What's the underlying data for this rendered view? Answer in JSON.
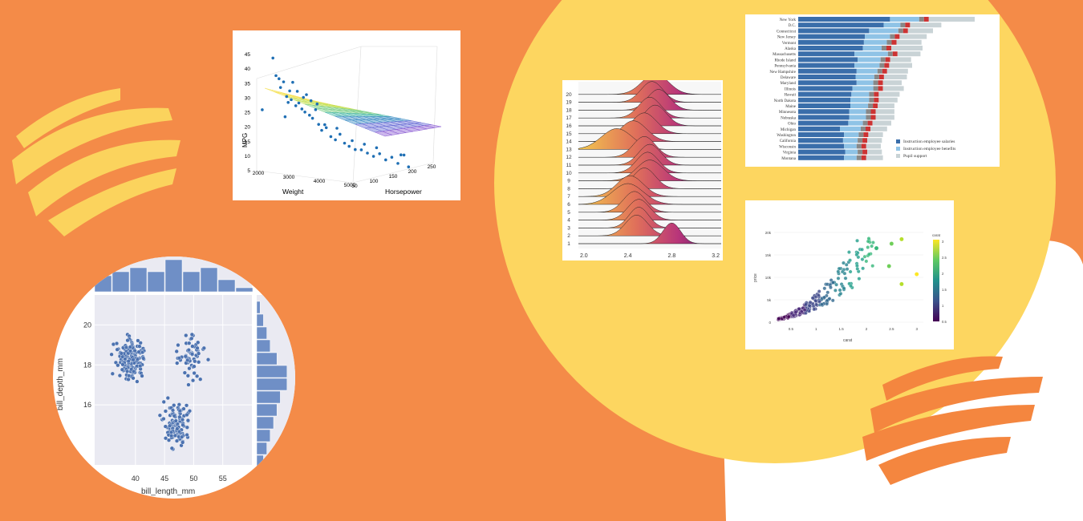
{
  "colors": {
    "background": "#f48b48",
    "yellow": "#fdd660",
    "white": "#ffffff",
    "brush_yellow": "#fbd35d",
    "brush_orange": "#f4863f"
  },
  "surface3d": {
    "chart_data": {
      "type": "scatter",
      "xlabel": "Weight",
      "ylabel": "Horsepower",
      "zlabel": "MPG",
      "x_ticks": [
        "2000",
        "3000",
        "4000",
        "5000"
      ],
      "y_ticks": [
        "50",
        "100",
        "150",
        "200",
        "250"
      ],
      "z_ticks": [
        "5",
        "10",
        "15",
        "20",
        "25",
        "30",
        "35",
        "40",
        "45"
      ],
      "zlim": [
        5,
        45
      ],
      "points": [
        [
          0.01,
          26
        ],
        [
          0.08,
          44
        ],
        [
          0.1,
          38
        ],
        [
          0.12,
          37
        ],
        [
          0.13,
          34
        ],
        [
          0.15,
          36
        ],
        [
          0.17,
          31
        ],
        [
          0.19,
          33
        ],
        [
          0.2,
          30
        ],
        [
          0.21,
          36
        ],
        [
          0.23,
          28
        ],
        [
          0.25,
          29
        ],
        [
          0.27,
          27
        ],
        [
          0.29,
          26
        ],
        [
          0.3,
          32
        ],
        [
          0.32,
          25
        ],
        [
          0.34,
          24
        ],
        [
          0.36,
          27
        ],
        [
          0.38,
          22
        ],
        [
          0.4,
          20
        ],
        [
          0.43,
          21
        ],
        [
          0.46,
          18
        ],
        [
          0.49,
          17
        ],
        [
          0.52,
          19
        ],
        [
          0.55,
          16
        ],
        [
          0.58,
          15
        ],
        [
          0.62,
          14
        ],
        [
          0.66,
          14
        ],
        [
          0.7,
          13
        ],
        [
          0.74,
          12
        ],
        [
          0.78,
          13
        ],
        [
          0.82,
          11
        ],
        [
          0.86,
          12
        ],
        [
          0.9,
          10
        ],
        [
          0.94,
          13
        ],
        [
          0.97,
          9
        ],
        [
          0.16,
          24
        ],
        [
          0.18,
          29
        ],
        [
          0.24,
          33
        ],
        [
          0.28,
          31
        ],
        [
          0.33,
          30
        ],
        [
          0.37,
          29
        ],
        [
          0.42,
          22
        ],
        [
          0.5,
          21
        ],
        [
          0.6,
          17
        ],
        [
          0.68,
          16
        ],
        [
          0.76,
          15
        ],
        [
          0.92,
          13
        ]
      ]
    }
  },
  "ridgeline": {
    "chart_data": {
      "type": "area",
      "x_ticks": [
        "2.0",
        "2.4",
        "2.8",
        "3.2"
      ],
      "xlim": [
        1.95,
        3.25
      ],
      "categories": [
        "1",
        "2",
        "3",
        "4",
        "5",
        "6",
        "7",
        "8",
        "9",
        "10",
        "11",
        "12",
        "13",
        "14",
        "15",
        "16",
        "17",
        "18",
        "19",
        "20"
      ],
      "peaks": [
        2.8,
        2.48,
        2.5,
        2.5,
        2.46,
        2.4,
        2.42,
        2.55,
        2.6,
        2.58,
        2.6,
        2.55,
        2.3,
        2.45,
        2.55,
        2.65,
        2.6,
        2.68,
        2.62,
        2.65
      ],
      "widths": [
        0.08,
        0.1,
        0.09,
        0.1,
        0.1,
        0.14,
        0.12,
        0.1,
        0.12,
        0.1,
        0.1,
        0.1,
        0.14,
        0.12,
        0.11,
        0.1,
        0.1,
        0.1,
        0.1,
        0.12
      ]
    }
  },
  "stacked": {
    "chart_data": {
      "type": "bar",
      "categories": [
        "New York",
        "D.C.",
        "Connecticut",
        "New Jersey",
        "Vermont",
        "Alaska",
        "Massachusetts",
        "Rhode Island",
        "Pennsylvania",
        "New Hampshire",
        "Delaware",
        "Maryland",
        "Illinois",
        "Hawaii",
        "North Dakota",
        "Maine",
        "Minnesota",
        "Nebraska",
        "Ohio",
        "Michigan",
        "Washington",
        "California",
        "Wisconsin",
        "Virginia",
        "Montana"
      ],
      "series": [
        {
          "name": "Instruction employee salaries",
          "color": "#3a6eaa",
          "values": [
            88,
            82,
            68,
            64,
            63,
            62,
            54,
            57,
            54,
            56,
            55,
            56,
            52,
            51,
            50,
            50,
            49,
            49,
            48,
            40,
            44,
            43,
            44,
            45,
            44
          ]
        },
        {
          "name": "Instruction employee benefits",
          "color": "#8fc3e6",
          "values": [
            28,
            16,
            28,
            24,
            22,
            18,
            32,
            22,
            24,
            20,
            18,
            16,
            20,
            17,
            18,
            17,
            16,
            16,
            14,
            20,
            14,
            14,
            12,
            12,
            12
          ]
        },
        {
          "name": "Pupil support",
          "color": "#c9d3d6",
          "values": [
            44,
            30,
            24,
            26,
            24,
            30,
            22,
            20,
            22,
            20,
            22,
            18,
            20,
            20,
            18,
            16,
            18,
            18,
            18,
            16,
            14,
            14,
            14,
            14,
            16
          ]
        }
      ],
      "extra_colors": [
        "#888888",
        "#cc3333"
      ]
    }
  },
  "colorscatter": {
    "chart_data": {
      "type": "scatter",
      "xlabel": "carat",
      "ylabel": "price",
      "colorbar_title": "carat",
      "x_ticks": [
        "0.5",
        "1",
        "1.5",
        "2",
        "2.5",
        "3"
      ],
      "y_ticks": [
        "0",
        "5k",
        "10k",
        "15k",
        "20k"
      ],
      "colorbar_ticks": [
        "0.5",
        "1",
        "1.5",
        "2",
        "2.5",
        "3"
      ],
      "xlim": [
        0.2,
        3.1
      ],
      "ylim": [
        0,
        20000
      ]
    }
  },
  "jointplot": {
    "chart_data": {
      "type": "scatter",
      "xlabel": "bill_length_mm",
      "ylabel": "bill_depth_mm",
      "x_ticks": [
        "40",
        "45",
        "50",
        "55"
      ],
      "y_ticks": [
        "16",
        "18",
        "20"
      ],
      "xlim": [
        33,
        60
      ],
      "ylim": [
        13,
        21.5
      ],
      "hist_top": [
        4,
        5,
        6,
        5,
        8,
        5,
        6,
        3,
        1
      ],
      "hist_right": [
        1,
        2,
        3,
        4,
        6,
        9,
        9,
        7,
        6,
        5,
        4,
        3,
        2
      ]
    }
  }
}
